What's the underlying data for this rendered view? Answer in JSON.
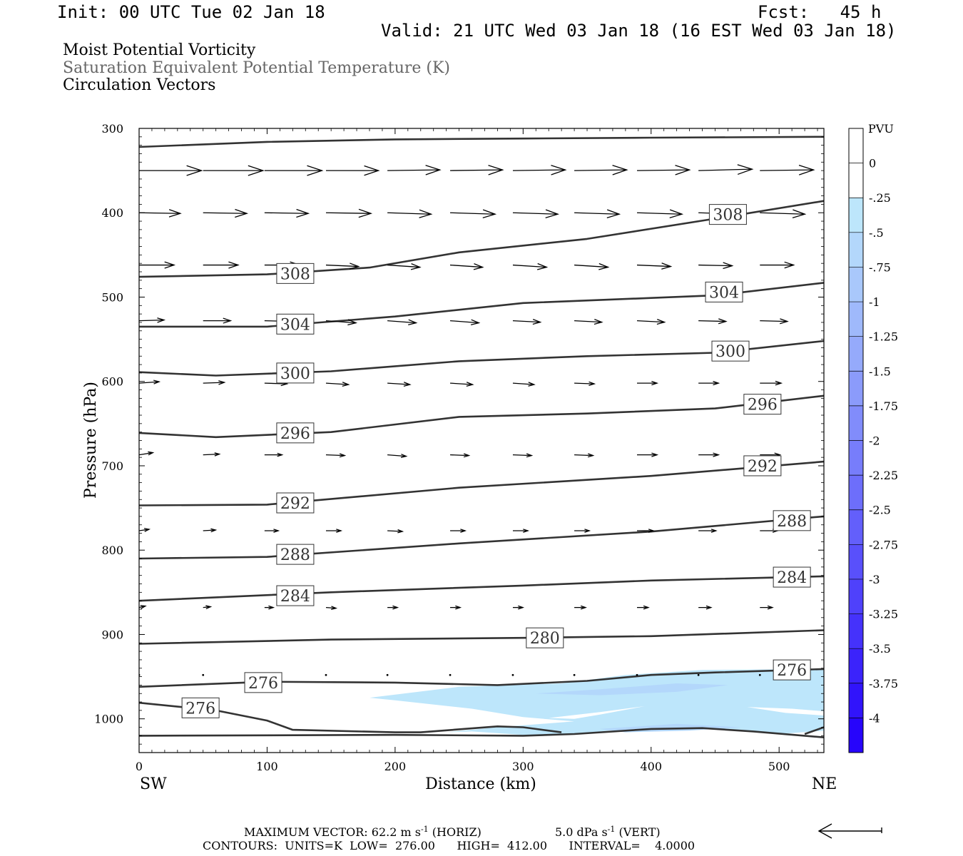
{
  "header": {
    "init": "Init: 00 UTC Tue 02 Jan 18",
    "fcst": "Fcst:   45 h",
    "valid": "Valid: 21 UTC Wed 03 Jan 18 (16 EST Wed 03 Jan 18)",
    "field1": "Moist Potential Vorticity",
    "field2": "Saturation Equivalent Potential Temperature (K)",
    "field3": "Circulation Vectors"
  },
  "colors": {
    "contour": "#333333",
    "field2_text": "#666666",
    "vector": "#000000"
  },
  "footer": {
    "max_vector": "MAXIMUM VECTOR:  62.2 m s",
    "horiz": "(HORIZ)",
    "vert_value": "5.0 dPa s",
    "vert": "(VERT)",
    "exp": "-1",
    "contours": "CONTOURS:  UNITS=K  LOW=  276.00      HIGH=  412.00      INTERVAL=    4.0000"
  },
  "chart_data": {
    "type": "cross-section",
    "xlabel": "Distance (km)",
    "ylabel": "Pressure (hPa)",
    "x_left_label": "SW",
    "x_right_label": "NE",
    "xlim": [
      0,
      535
    ],
    "ylim": [
      300,
      1040
    ],
    "x_ticks": [
      0,
      100,
      200,
      300,
      400,
      500
    ],
    "y_ticks": [
      300,
      400,
      500,
      600,
      700,
      800,
      900,
      1000
    ],
    "grid": false,
    "colorbar": {
      "title": "PVU",
      "labels": [
        "0",
        "-.25",
        "-.5",
        "-.75",
        "-1",
        "-1.25",
        "-1.5",
        "-1.75",
        "-2",
        "-2.25",
        "-2.5",
        "-2.75",
        "-3",
        "-3.25",
        "-3.5",
        "-3.75",
        "-4"
      ],
      "colors": [
        "#ffffff",
        "#ffffff",
        "#bde6fb",
        "#b3d7fb",
        "#a9c8fb",
        "#9fb9fb",
        "#95aafb",
        "#8b9bfb",
        "#818cfb",
        "#777dfb",
        "#6d6efb",
        "#635ffb",
        "#5950fb",
        "#4f41fb",
        "#4532fb",
        "#3b23fb",
        "#3114fb",
        "#2705fb"
      ]
    },
    "contours": [
      {
        "label": "308",
        "points": [
          [
            0,
            322
          ],
          [
            100,
            316
          ],
          [
            200,
            313
          ],
          [
            300,
            312
          ],
          [
            400,
            311
          ],
          [
            535,
            310
          ]
        ]
      },
      {
        "label": "308",
        "points": [
          [
            0,
            476
          ],
          [
            100,
            473
          ],
          [
            180,
            465
          ],
          [
            250,
            447
          ],
          [
            350,
            431
          ],
          [
            450,
            407
          ],
          [
            535,
            386
          ]
        ],
        "labels_at": [
          [
            122,
            472
          ],
          [
            460,
            402
          ]
        ]
      },
      {
        "label": "304",
        "points": [
          [
            0,
            535
          ],
          [
            100,
            535
          ],
          [
            200,
            523
          ],
          [
            300,
            507
          ],
          [
            400,
            501
          ],
          [
            450,
            498
          ],
          [
            535,
            483
          ]
        ],
        "labels_at": [
          [
            122,
            532
          ],
          [
            457,
            494
          ]
        ]
      },
      {
        "label": "300",
        "points": [
          [
            0,
            589
          ],
          [
            60,
            593
          ],
          [
            150,
            588
          ],
          [
            250,
            576
          ],
          [
            350,
            570
          ],
          [
            450,
            566
          ],
          [
            535,
            552
          ]
        ],
        "labels_at": [
          [
            122,
            590
          ],
          [
            462,
            564
          ]
        ]
      },
      {
        "label": "296",
        "points": [
          [
            0,
            661
          ],
          [
            60,
            666
          ],
          [
            150,
            660
          ],
          [
            250,
            642
          ],
          [
            350,
            638
          ],
          [
            450,
            632
          ],
          [
            535,
            617
          ]
        ],
        "labels_at": [
          [
            122,
            661
          ],
          [
            487,
            627
          ]
        ]
      },
      {
        "label": "292",
        "points": [
          [
            0,
            747
          ],
          [
            100,
            746
          ],
          [
            250,
            726
          ],
          [
            400,
            712
          ],
          [
            535,
            695
          ]
        ],
        "labels_at": [
          [
            122,
            744
          ],
          [
            487,
            700
          ]
        ]
      },
      {
        "label": "288",
        "points": [
          [
            0,
            810
          ],
          [
            100,
            808
          ],
          [
            250,
            792
          ],
          [
            400,
            778
          ],
          [
            535,
            760
          ]
        ],
        "labels_at": [
          [
            122,
            805
          ],
          [
            510,
            765
          ]
        ]
      },
      {
        "label": "284",
        "points": [
          [
            0,
            860
          ],
          [
            150,
            850
          ],
          [
            300,
            842
          ],
          [
            400,
            836
          ],
          [
            535,
            831
          ]
        ],
        "labels_at": [
          [
            122,
            854
          ],
          [
            510,
            832
          ]
        ]
      },
      {
        "label": "280",
        "points": [
          [
            0,
            911
          ],
          [
            150,
            906
          ],
          [
            300,
            904
          ],
          [
            400,
            902
          ],
          [
            535,
            895
          ]
        ],
        "labels_at": [
          [
            317,
            904
          ]
        ]
      },
      {
        "label": "276",
        "points": [
          [
            0,
            962
          ],
          [
            100,
            956
          ],
          [
            200,
            957
          ],
          [
            280,
            960
          ],
          [
            350,
            955
          ],
          [
            400,
            948
          ],
          [
            450,
            945
          ],
          [
            535,
            941
          ]
        ],
        "labels_at": [
          [
            97,
            957
          ],
          [
            510,
            942
          ]
        ]
      },
      {
        "label": "276",
        "points": [
          [
            0,
            981
          ],
          [
            60,
            990
          ],
          [
            100,
            1002
          ],
          [
            120,
            1013
          ],
          [
            200,
            1016
          ],
          [
            220,
            1016
          ],
          [
            280,
            1009
          ],
          [
            300,
            1010
          ],
          [
            330,
            1016
          ]
        ],
        "labels_at": [
          [
            48,
            987
          ]
        ]
      },
      {
        "label": "",
        "points": [
          [
            0,
            1020
          ],
          [
            200,
            1019
          ],
          [
            300,
            1020
          ],
          [
            340,
            1018
          ],
          [
            400,
            1012
          ],
          [
            440,
            1011
          ],
          [
            480,
            1015
          ],
          [
            535,
            1022
          ]
        ]
      },
      {
        "label": "",
        "points": [
          [
            520,
            1018
          ],
          [
            535,
            1010
          ]
        ]
      }
    ],
    "vectors": [
      {
        "p": 350,
        "x": [
          0,
          50,
          98,
          146,
          194,
          243,
          292,
          340,
          389,
          437,
          485
        ],
        "u": [
          50,
          48,
          46,
          42,
          42,
          42,
          42,
          42,
          42,
          43,
          43
        ],
        "v": [
          0,
          0,
          0,
          0,
          -1,
          -1,
          -1,
          -1,
          -1,
          -2,
          -1
        ]
      },
      {
        "p": 400,
        "x": [
          0,
          50,
          98,
          146,
          194,
          243,
          292,
          340,
          389,
          437,
          485
        ],
        "u": [
          33,
          35,
          35,
          36,
          35,
          36,
          36,
          36,
          36,
          35,
          36
        ],
        "v": [
          1,
          1,
          1,
          1,
          2,
          2,
          2,
          2,
          2,
          2,
          2
        ]
      },
      {
        "p": 462,
        "x": [
          0,
          50,
          98,
          146,
          194,
          243,
          292,
          340,
          389,
          437,
          485
        ],
        "u": [
          28,
          28,
          28,
          26,
          26,
          26,
          27,
          27,
          27,
          27,
          27
        ],
        "v": [
          0,
          0,
          0,
          2,
          3,
          3,
          3,
          3,
          2,
          1,
          0
        ]
      },
      {
        "p": 528,
        "x": [
          0,
          50,
          98,
          146,
          194,
          243,
          292,
          340,
          389,
          437,
          485
        ],
        "u": [
          20,
          22,
          22,
          24,
          23,
          23,
          22,
          22,
          22,
          22,
          22
        ],
        "v": [
          -1,
          0,
          1,
          3,
          3,
          3,
          2,
          2,
          2,
          1,
          1
        ]
      },
      {
        "p": 602,
        "x": [
          0,
          50,
          98,
          146,
          194,
          243,
          292,
          340,
          389,
          437,
          485
        ],
        "u": [
          16,
          17,
          18,
          18,
          18,
          18,
          17,
          16,
          16,
          16,
          17
        ],
        "v": [
          -2,
          -1,
          1,
          2,
          2,
          2,
          2,
          1,
          0,
          0,
          0
        ]
      },
      {
        "p": 687,
        "x": [
          0,
          50,
          98,
          146,
          194,
          243,
          292,
          340,
          389,
          437,
          485
        ],
        "u": [
          11,
          13,
          14,
          15,
          15,
          15,
          15,
          15,
          16,
          16,
          16
        ],
        "v": [
          -3,
          -1,
          0,
          1,
          2,
          1,
          1,
          1,
          0,
          0,
          0
        ]
      },
      {
        "p": 777,
        "x": [
          0,
          50,
          98,
          146,
          194,
          243,
          292,
          340,
          389,
          437,
          485
        ],
        "u": [
          8,
          10,
          11,
          12,
          12,
          12,
          12,
          12,
          13,
          14,
          14
        ],
        "v": [
          -2,
          -1,
          0,
          0,
          1,
          0,
          0,
          0,
          0,
          0,
          0
        ]
      },
      {
        "p": 868,
        "x": [
          0,
          50,
          98,
          146,
          194,
          243,
          292,
          340,
          389,
          437,
          485
        ],
        "u": [
          5,
          6,
          7,
          8,
          8,
          8,
          8,
          9,
          9,
          10,
          10
        ],
        "v": [
          -2,
          -1,
          0,
          1,
          0,
          0,
          0,
          0,
          0,
          0,
          0
        ]
      }
    ],
    "dots_p": 948,
    "dots_x": [
      0,
      50,
      98,
      146,
      194,
      243,
      292,
      340,
      389,
      437,
      485
    ],
    "shading": [
      {
        "color": "#bde6fb",
        "points": [
          [
            180,
            975
          ],
          [
            250,
            962
          ],
          [
            330,
            958
          ],
          [
            380,
            948
          ],
          [
            440,
            942
          ],
          [
            535,
            941
          ],
          [
            535,
            1014
          ],
          [
            500,
            1018
          ],
          [
            460,
            1012
          ],
          [
            420,
            1010
          ],
          [
            380,
            1012
          ],
          [
            340,
            1018
          ],
          [
            300,
            1019
          ],
          [
            260,
            1015
          ],
          [
            240,
            1016
          ],
          [
            280,
            1010
          ],
          [
            340,
            1003
          ],
          [
            300,
            998
          ],
          [
            260,
            988
          ],
          [
            200,
            978
          ]
        ]
      },
      {
        "color": "#b3d7fb",
        "points": [
          [
            310,
            970
          ],
          [
            360,
            965
          ],
          [
            420,
            958
          ],
          [
            460,
            960
          ],
          [
            420,
            968
          ],
          [
            360,
            972
          ]
        ]
      },
      {
        "color": "#b3d7fb",
        "points": [
          [
            360,
            1012
          ],
          [
            420,
            1006
          ],
          [
            470,
            1010
          ],
          [
            430,
            1014
          ],
          [
            380,
            1016
          ]
        ]
      }
    ],
    "gaps": [
      {
        "color": "#ffffff",
        "points": [
          [
            320,
            999
          ],
          [
            360,
            992
          ],
          [
            395,
            985
          ],
          [
            360,
            995
          ],
          [
            340,
            1000
          ]
        ]
      },
      {
        "color": "#ffffff",
        "points": [
          [
            475,
            986
          ],
          [
            510,
            988
          ],
          [
            535,
            991
          ],
          [
            535,
            996
          ],
          [
            505,
            993
          ]
        ]
      }
    ]
  }
}
